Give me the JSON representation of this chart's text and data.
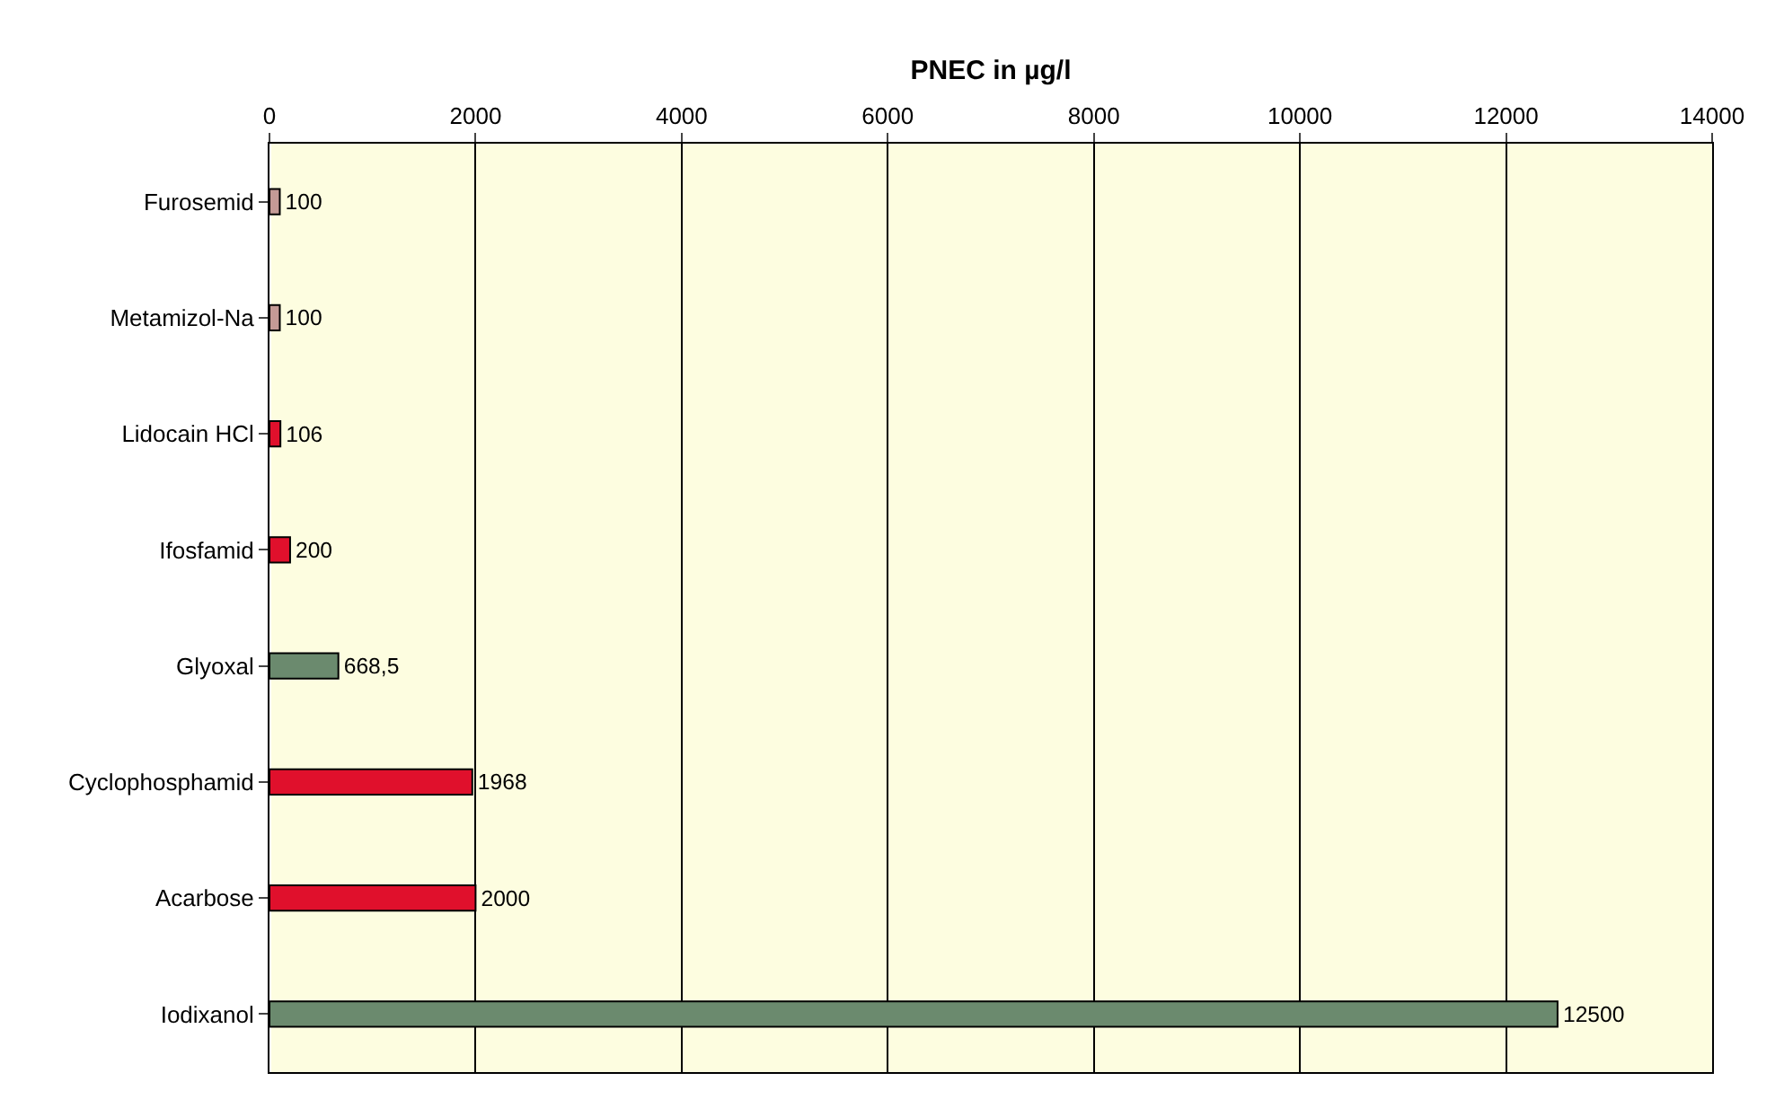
{
  "chart_data": {
    "type": "bar",
    "orientation": "horizontal",
    "xlabel": "PNEC in µg/l",
    "categories": [
      "Furosemid",
      "Metamizol-Na",
      "Lidocain HCl",
      "Ifosfamid",
      "Glyoxal",
      "Cyclophosphamid",
      "Acarbose",
      "Iodixanol"
    ],
    "values": [
      100,
      100,
      106,
      200,
      668.5,
      1968,
      2000,
      12500
    ],
    "colors": [
      "#c49a96",
      "#c49a96",
      "#e0102c",
      "#e0102c",
      "#6b8a6e",
      "#e0102c",
      "#e0102c",
      "#6b8a6e"
    ],
    "value_labels": [
      "100",
      "100",
      "106",
      "200",
      "668,5",
      "1968",
      "2000",
      "12500"
    ],
    "xlim": [
      0,
      14000
    ],
    "xticks": [
      0,
      2000,
      4000,
      6000,
      8000,
      10000,
      12000,
      14000
    ],
    "grid": "x"
  }
}
